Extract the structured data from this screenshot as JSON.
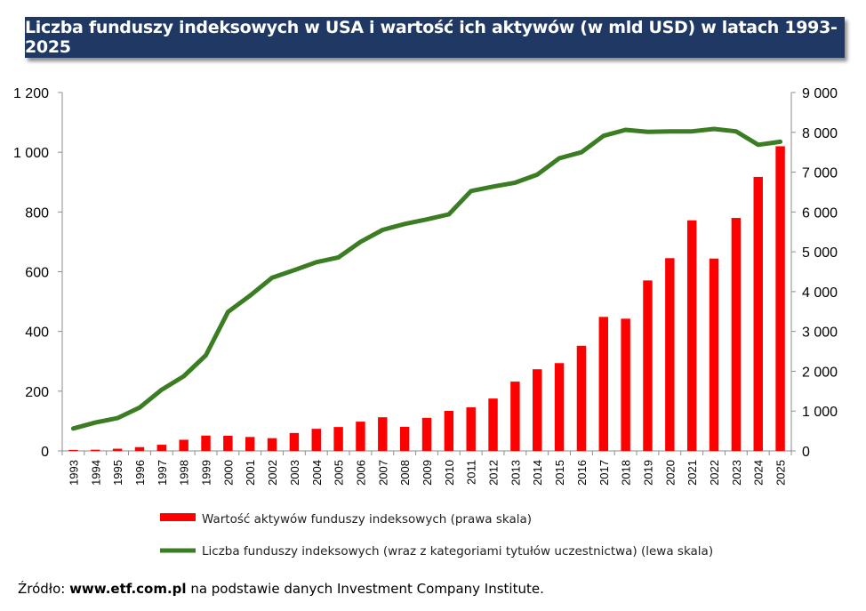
{
  "title": "Liczba funduszy indeksowych w USA i wartość ich aktywów (w mld USD) w latach 1993-2025",
  "source": {
    "prefix": "Źródło: ",
    "site": "www.etf.com.pl",
    "suffix": " na podstawie danych Investment Company Institute."
  },
  "colors": {
    "bars": "#ff0000",
    "line": "#3a7d22",
    "title_bg": "#1f3864"
  },
  "chart_data": {
    "type": "bar+line",
    "categories": [
      "1993",
      "1994",
      "1995",
      "1996",
      "1997",
      "1998",
      "1999",
      "2000",
      "2001",
      "2002",
      "2003",
      "2004",
      "2005",
      "2006",
      "2007",
      "2008",
      "2009",
      "2010",
      "2011",
      "2012",
      "2013",
      "2014",
      "2015",
      "2016",
      "2017",
      "2018",
      "2019",
      "2020",
      "2021",
      "2022",
      "2023",
      "2024",
      "2025"
    ],
    "series": [
      {
        "name": "Wartość aktywów funduszy indeksowych (prawa skala)",
        "type": "bar",
        "axis": "right",
        "values": [
          25,
          30,
          55,
          95,
          155,
          280,
          385,
          380,
          350,
          320,
          450,
          555,
          600,
          735,
          845,
          605,
          830,
          1005,
          1095,
          1315,
          1740,
          2050,
          2205,
          2640,
          3365,
          3320,
          4280,
          4840,
          5790,
          4830,
          5850,
          6880,
          7650
        ]
      },
      {
        "name": "Liczba funduszy indeksowych (wraz z kategoriami tytułów uczestnictwa) (lewa skala)",
        "type": "line",
        "axis": "left",
        "values": [
          75,
          95,
          110,
          145,
          205,
          250,
          320,
          465,
          520,
          580,
          605,
          632,
          648,
          700,
          740,
          760,
          775,
          792,
          870,
          885,
          898,
          925,
          980,
          1000,
          1055,
          1075,
          1068,
          1070,
          1070,
          1078,
          1070,
          1025,
          1035
        ]
      }
    ],
    "left_axis": {
      "min": 0,
      "max": 1200,
      "ticks": [
        "0",
        "200",
        "400",
        "600",
        "800",
        "1 000",
        "1 200"
      ]
    },
    "right_axis": {
      "min": 0,
      "max": 9000,
      "ticks": [
        "0",
        "1 000",
        "2 000",
        "3 000",
        "4 000",
        "5 000",
        "6 000",
        "7 000",
        "8 000",
        "9 000"
      ]
    },
    "grid": false,
    "legend_position": "bottom"
  }
}
